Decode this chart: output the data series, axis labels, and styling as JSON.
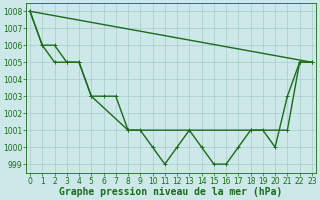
{
  "background_color": "#cce8e8",
  "grid_color": "#aacccc",
  "line_color": "#1a6b1a",
  "xlabel": "Graphe pression niveau de la mer (hPa)",
  "xlabel_fontsize": 7,
  "ylim": [
    998.5,
    1008.5
  ],
  "xlim": [
    -0.3,
    23.3
  ],
  "yticks": [
    999,
    1000,
    1001,
    1002,
    1003,
    1004,
    1005,
    1006,
    1007,
    1008
  ],
  "xticks": [
    0,
    1,
    2,
    3,
    4,
    5,
    6,
    7,
    8,
    9,
    10,
    11,
    12,
    13,
    14,
    15,
    16,
    17,
    18,
    19,
    20,
    21,
    22,
    23
  ],
  "series1": [
    1008,
    1006,
    1006,
    1005,
    1005,
    1003,
    1003,
    1003,
    1001,
    1001,
    1000,
    999,
    1000,
    1001,
    1000,
    999,
    999,
    1000,
    1001,
    1001,
    1000,
    1003,
    1005,
    1005
  ],
  "series2_x": [
    0,
    1,
    2,
    3,
    4,
    5,
    8,
    18,
    21,
    22,
    23
  ],
  "series2_y": [
    1008,
    1006,
    1005,
    1005,
    1005,
    1003,
    1001,
    1001,
    1001,
    1005,
    1005
  ],
  "series3_x": [
    0,
    23
  ],
  "series3_y": [
    1008,
    1005
  ],
  "tick_fontsize": 5.5,
  "line_width": 1.0,
  "marker_size": 2.5,
  "marker_ew": 0.7
}
